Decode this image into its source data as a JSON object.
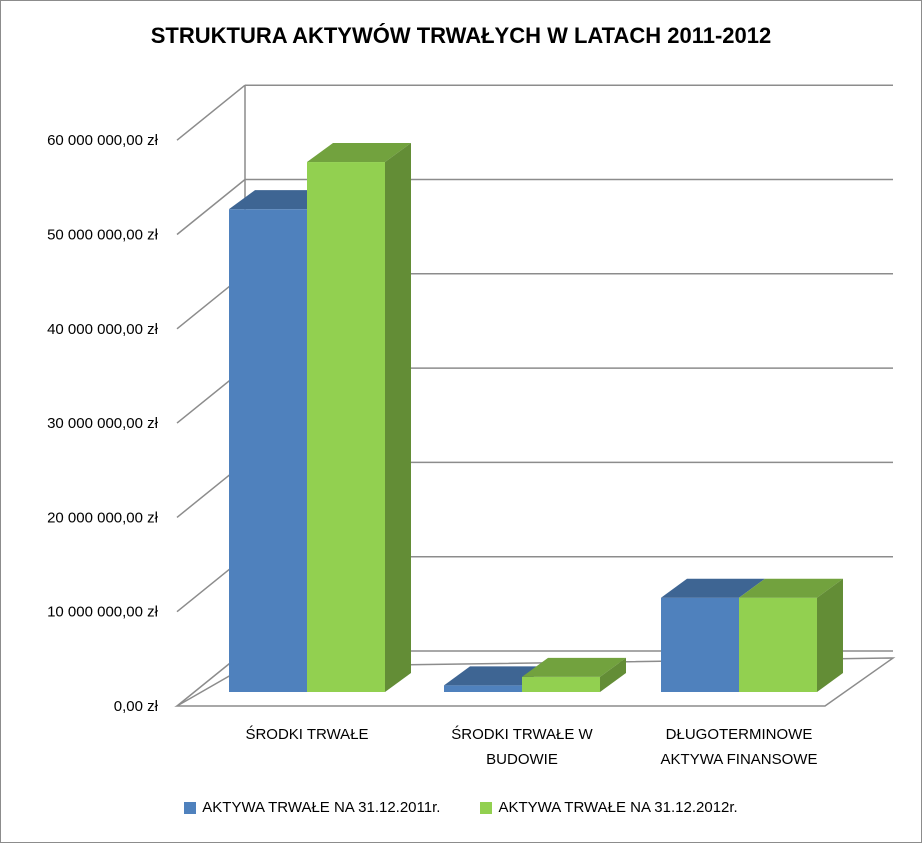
{
  "chart_data": {
    "type": "bar",
    "title": "STRUKTURA AKTYWÓW TRWAŁYCH W LATACH 2011-2012",
    "categories": [
      [
        "ŚRODKI TRWAŁE"
      ],
      [
        "ŚRODKI TRWAŁE W",
        "BUDOWIE"
      ],
      [
        "DŁUGOTERMINOWE",
        "AKTYWA FINANSOWE"
      ]
    ],
    "series": [
      {
        "name": "AKTYWA TRWAŁE NA 31.12.2011r.",
        "color": "#4f81bd",
        "values": [
          51200000,
          700000,
          10000000
        ]
      },
      {
        "name": "AKTYWA TRWAŁE NA 31.12.2012r.",
        "color": "#92d050",
        "values": [
          56200000,
          1600000,
          10000000
        ]
      }
    ],
    "yticks": [
      0,
      10000000,
      20000000,
      30000000,
      40000000,
      50000000,
      60000000
    ],
    "ytick_labels": [
      "0,00 zł",
      "10 000 000,00 zł",
      "20 000 000,00 zł",
      "30 000 000,00 zł",
      "40 000 000,00 zł",
      "50 000 000,00 zł",
      "60 000 000,00 zł"
    ],
    "ylim": [
      0,
      60000000
    ],
    "grid": true,
    "legend_position": "bottom",
    "xlabel": "",
    "ylabel": ""
  }
}
